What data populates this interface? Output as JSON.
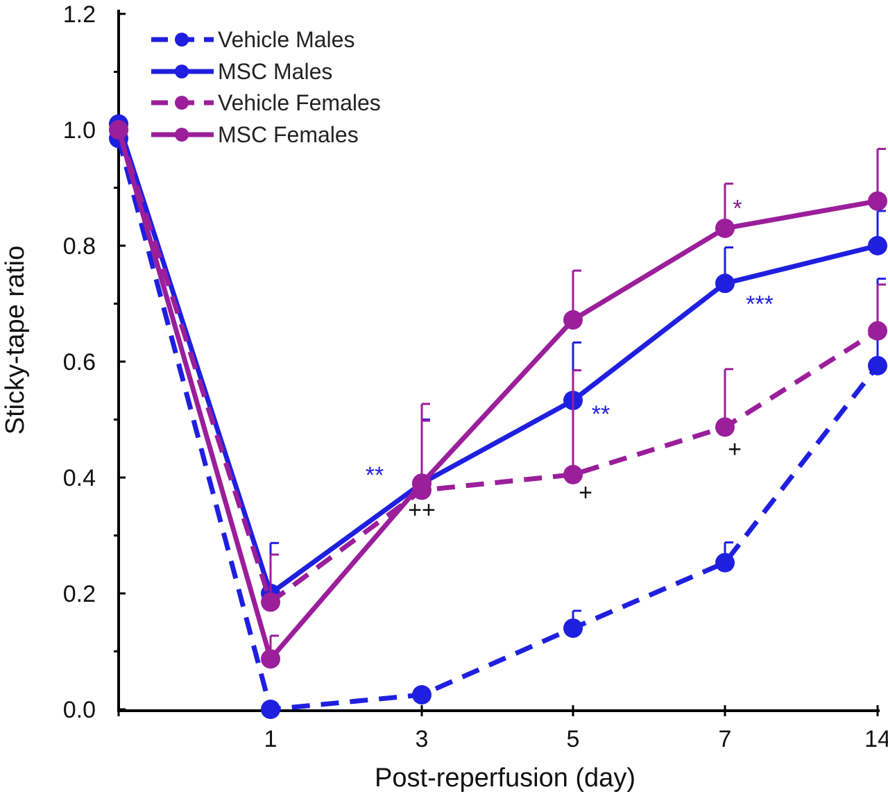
{
  "chart_data": {
    "type": "line",
    "title": "",
    "xlabel": "Post-reperfusion (day)",
    "ylabel": "Sticky-tape ratio",
    "x_categories": [
      "",
      "1",
      "3",
      "5",
      "7",
      "14"
    ],
    "y_ticks": [
      "0.0",
      "0.2",
      "0.4",
      "0.6",
      "0.8",
      "1.0",
      "1.2"
    ],
    "ylim": [
      0,
      1.2
    ],
    "grid": false,
    "legend_position": "top-left",
    "series": [
      {
        "name": "Vehicle Males",
        "color": "#1f1fe0",
        "style": "dashed",
        "values": [
          0.985,
          0.0,
          0.025,
          0.14,
          0.253,
          0.593
        ],
        "errors": [
          null,
          null,
          null,
          0.03,
          0.035,
          0.15
        ]
      },
      {
        "name": "MSC Males",
        "color": "#1f1fe0",
        "style": "solid",
        "values": [
          1.01,
          0.2,
          0.39,
          0.533,
          0.735,
          0.8
        ],
        "errors": [
          null,
          0.087,
          0.11,
          0.1,
          0.062,
          0.06
        ]
      },
      {
        "name": "Vehicle Females",
        "color": "#9b1e9b",
        "style": "dashed",
        "values": [
          1.0,
          0.185,
          0.378,
          0.405,
          0.487,
          0.653
        ],
        "errors": [
          null,
          0.082,
          0.12,
          0.18,
          0.1,
          0.08
        ]
      },
      {
        "name": "MSC Females",
        "color": "#9b1e9b",
        "style": "solid",
        "values": [
          1.0,
          0.087,
          0.39,
          0.672,
          0.83,
          0.877
        ],
        "errors": [
          null,
          0.04,
          0.137,
          0.085,
          0.077,
          0.09
        ]
      }
    ],
    "annotations": [
      {
        "text": "**",
        "color": "#1f1fe0",
        "x_index": 3,
        "y": 0.405,
        "dx": -68,
        "dy": 0
      },
      {
        "text": "++",
        "color": "#111111",
        "x_index": 3,
        "y": 0.345,
        "dx": 0,
        "dy": 0
      },
      {
        "text": "**",
        "color": "#1f1fe0",
        "x_index": 5,
        "y": 0.51,
        "dx": 40,
        "dy": 0
      },
      {
        "text": "+",
        "color": "#111111",
        "x_index": 5,
        "y": 0.375,
        "dx": 18,
        "dy": 0
      },
      {
        "text": "*",
        "color": "#7a1f7a",
        "x_index": 7,
        "y": 0.865,
        "dx": 18,
        "dy": 0
      },
      {
        "text": "***",
        "color": "#1f1fe0",
        "x_index": 7,
        "y": 0.7,
        "dx": 50,
        "dy": 0
      },
      {
        "text": "+",
        "color": "#111111",
        "x_index": 7,
        "y": 0.45,
        "dx": 14,
        "dy": 0
      }
    ]
  }
}
